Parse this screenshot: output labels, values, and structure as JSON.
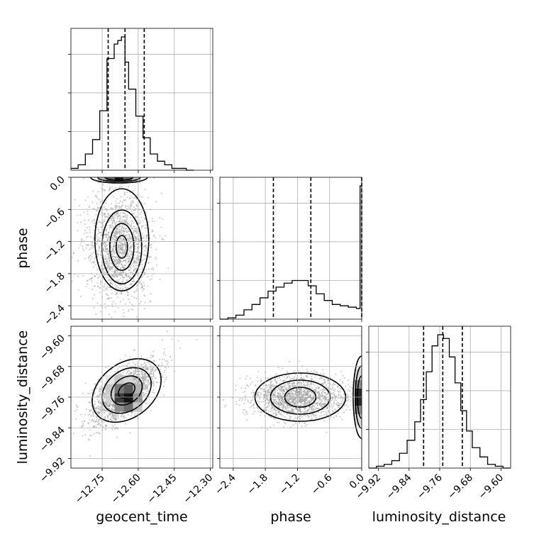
{
  "chart_data": {
    "type": "corner",
    "parameters": [
      "geocent_time",
      "phase",
      "luminosity_distance"
    ],
    "axis_labels": {
      "geocent_time": "geocent_time",
      "phase": "phase",
      "luminosity_distance": "luminosity_distance"
    },
    "ranges": {
      "geocent_time": [
        -12.88,
        -12.29
      ],
      "phase": [
        -2.65,
        0.0
      ],
      "luminosity_distance": [
        -9.945,
        -9.575
      ]
    },
    "ticks": {
      "geocent_time": [
        -12.75,
        -12.6,
        -12.45,
        -12.3
      ],
      "phase": [
        -2.4,
        -1.8,
        -1.2,
        -0.6,
        0.0
      ],
      "luminosity_distance": [
        -9.92,
        -9.84,
        -9.76,
        -9.68,
        -9.6
      ]
    },
    "tick_labels": {
      "geocent_time": [
        "−12.75",
        "−12.60",
        "−12.45",
        "−12.30"
      ],
      "phase": [
        "−2.4",
        "−1.8",
        "−1.2",
        "−0.6",
        "0.0"
      ],
      "luminosity_distance": [
        "−9.92",
        "−9.84",
        "−9.76",
        "−9.68",
        "−9.60"
      ]
    },
    "quantiles": {
      "geocent_time": [
        -12.725,
        -12.655,
        -12.575
      ],
      "phase": [
        -1.65,
        -0.95,
        0.0
      ],
      "luminosity_distance": [
        -9.802,
        -9.752,
        -9.701
      ]
    },
    "histograms": {
      "geocent_time": {
        "edges": [
          -12.88,
          -12.85,
          -12.82,
          -12.79,
          -12.76,
          -12.73,
          -12.7,
          -12.685,
          -12.67,
          -12.655,
          -12.64,
          -12.61,
          -12.58,
          -12.55,
          -12.52,
          -12.49,
          -12.46,
          -12.43,
          -12.4,
          -12.37
        ],
        "counts": [
          1,
          3,
          9,
          17,
          33,
          62,
          70,
          72,
          74,
          60,
          45,
          30,
          18,
          9,
          5,
          3,
          1,
          1,
          0
        ]
      },
      "phase": {
        "edges": [
          -2.65,
          -2.5,
          -2.35,
          -2.2,
          -2.05,
          -1.9,
          -1.75,
          -1.6,
          -1.45,
          -1.3,
          -1.15,
          -1.0,
          -0.85,
          -0.7,
          -0.55,
          -0.4,
          -0.25,
          -0.1,
          -0.03,
          0.0
        ],
        "counts": [
          0,
          1,
          3,
          7,
          11,
          16,
          21,
          24,
          27,
          29,
          29,
          25,
          19,
          14,
          11,
          10,
          9,
          8,
          100
        ]
      },
      "luminosity_distance": {
        "edges": [
          -9.945,
          -9.925,
          -9.905,
          -9.885,
          -9.865,
          -9.845,
          -9.825,
          -9.81,
          -9.795,
          -9.78,
          -9.765,
          -9.75,
          -9.735,
          -9.72,
          -9.705,
          -9.69,
          -9.675,
          -9.655,
          -9.635,
          -9.615,
          -9.595,
          -9.575
        ],
        "counts": [
          0,
          1,
          2,
          4,
          8,
          15,
          25,
          37,
          52,
          66,
          72,
          70,
          60,
          46,
          31,
          20,
          11,
          6,
          2,
          1,
          0
        ]
      }
    },
    "scatter_centers": {
      "geocent_time_phase": {
        "x": -12.68,
        "y": -1.3
      },
      "geocent_time_luminosity_distance": {
        "x": -12.66,
        "y": -9.75
      },
      "phase_luminosity_distance": {
        "x": -1.2,
        "y": -9.76
      }
    },
    "grid": true
  }
}
